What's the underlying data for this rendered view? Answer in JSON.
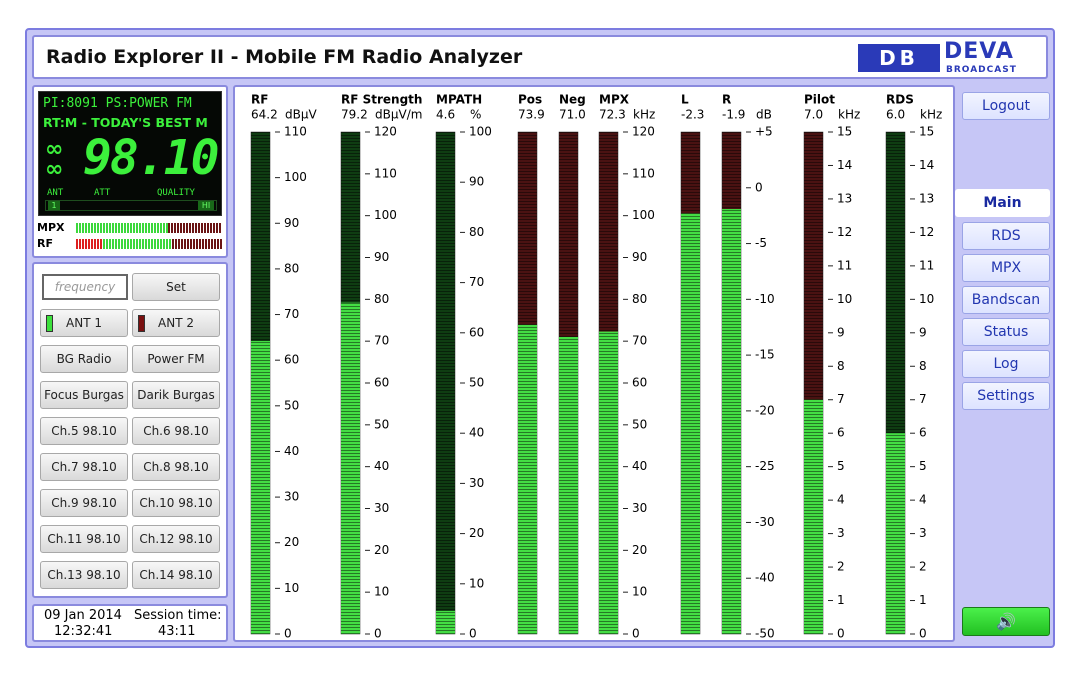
{
  "header": {
    "title": "Radio Explorer II - Mobile FM Radio Analyzer",
    "logo_mark": "DB",
    "logo_text": "DEVA",
    "logo_sub": "BROADCAST"
  },
  "display": {
    "pi": "PI:",
    "pi_code": "8091",
    "ps": "PS:",
    "ps_text": "POWER FM",
    "rt": "RT:M - TODAY'S BEST M",
    "frequency": "98.10",
    "ant_label": "ANT",
    "att_label": "ATT",
    "quality_label": "QUALITY",
    "ant_value": "1",
    "quality_value": "HI",
    "mpx_label": "MPX",
    "rf_label": "RF"
  },
  "controls": {
    "frequency_placeholder": "frequency",
    "set": "Set",
    "antennas": [
      "ANT 1",
      "ANT 2"
    ],
    "presets": [
      "BG Radio",
      "Power FM",
      "Focus Burgas",
      "Darik Burgas",
      "Ch.5 98.10",
      "Ch.6 98.10",
      "Ch.7 98.10",
      "Ch.8 98.10",
      "Ch.9 98.10",
      "Ch.10 98.10",
      "Ch.11 98.10",
      "Ch.12 98.10",
      "Ch.13 98.10",
      "Ch.14 98.10"
    ]
  },
  "footer": {
    "date": "09 Jan 2014",
    "time": "12:32:41",
    "session_label": "Session time:",
    "session_time": "43:11"
  },
  "nav": {
    "logout": "Logout",
    "tabs": [
      "Main",
      "RDS",
      "MPX",
      "Bandscan",
      "Status",
      "Log",
      "Settings"
    ],
    "active": "Main"
  },
  "meters": [
    {
      "name": "RF",
      "value": 64.2,
      "unit": "dBµV",
      "ylim": [
        0,
        110
      ],
      "yticks": [
        0,
        10,
        20,
        30,
        40,
        50,
        60,
        70,
        80,
        90,
        100,
        110
      ],
      "color": "#44dd44",
      "track_color": "#0f3d12"
    },
    {
      "name": "RF Strength",
      "value": 79.2,
      "unit": "dBµV/m",
      "ylim": [
        0,
        120
      ],
      "yticks": [
        0,
        10,
        20,
        30,
        40,
        50,
        60,
        70,
        80,
        90,
        100,
        110,
        120
      ],
      "color": "#44dd44",
      "track_color": "#0f3d12"
    },
    {
      "name": "MPATH",
      "value": 4.6,
      "unit": "%",
      "ylim": [
        0,
        100
      ],
      "yticks": [
        0,
        10,
        20,
        30,
        40,
        50,
        60,
        70,
        80,
        90,
        100
      ],
      "color": "#44dd44",
      "track_color": "#0f3d12"
    },
    {
      "name": "Pos",
      "value": 73.9,
      "ylim": [
        0,
        120
      ],
      "color": "#44dd44",
      "track_color": "#4a1212"
    },
    {
      "name": "Neg",
      "value": 71,
      "value_label": "71.0",
      "ylim": [
        0,
        120
      ],
      "color": "#44dd44",
      "track_color": "#4a1212"
    },
    {
      "name": "MPX",
      "value": 72.3,
      "unit": "kHz",
      "ylim": [
        0,
        120
      ],
      "yticks": [
        0,
        10,
        20,
        30,
        40,
        50,
        60,
        70,
        80,
        90,
        100,
        110,
        120
      ],
      "color": "#44dd44",
      "track_color": "#4a1212"
    },
    {
      "name": "L",
      "value": -2.3,
      "ylim": [
        -50,
        5
      ],
      "color": "#44dd44",
      "track_color": "#4a1212"
    },
    {
      "name": "R",
      "value": -1.9,
      "unit": "dB",
      "ylim": [
        -50,
        5
      ],
      "yticks": [
        -50,
        -40,
        -30,
        -25,
        -20,
        -15,
        -10,
        -5,
        0,
        {
          "value": 5,
          "label": "+5"
        }
      ],
      "color": "#44dd44",
      "track_color": "#4a1212"
    },
    {
      "name": "Pilot",
      "value": 7,
      "value_label": "7.0",
      "unit": "kHz",
      "ylim": [
        0,
        15
      ],
      "yticks": [
        0,
        1,
        2,
        3,
        4,
        5,
        6,
        7,
        8,
        9,
        10,
        11,
        12,
        13,
        14,
        15
      ],
      "color": "#44dd44",
      "track_color": "#4a1212"
    },
    {
      "name": "RDS",
      "value": 6,
      "value_label": "6.0",
      "unit": "kHz",
      "ylim": [
        0,
        15
      ],
      "yticks": [
        0,
        1,
        2,
        3,
        4,
        5,
        6,
        7,
        8,
        9,
        10,
        11,
        12,
        13,
        14,
        15
      ],
      "color": "#44dd44",
      "track_color": "#0f3d12"
    }
  ]
}
